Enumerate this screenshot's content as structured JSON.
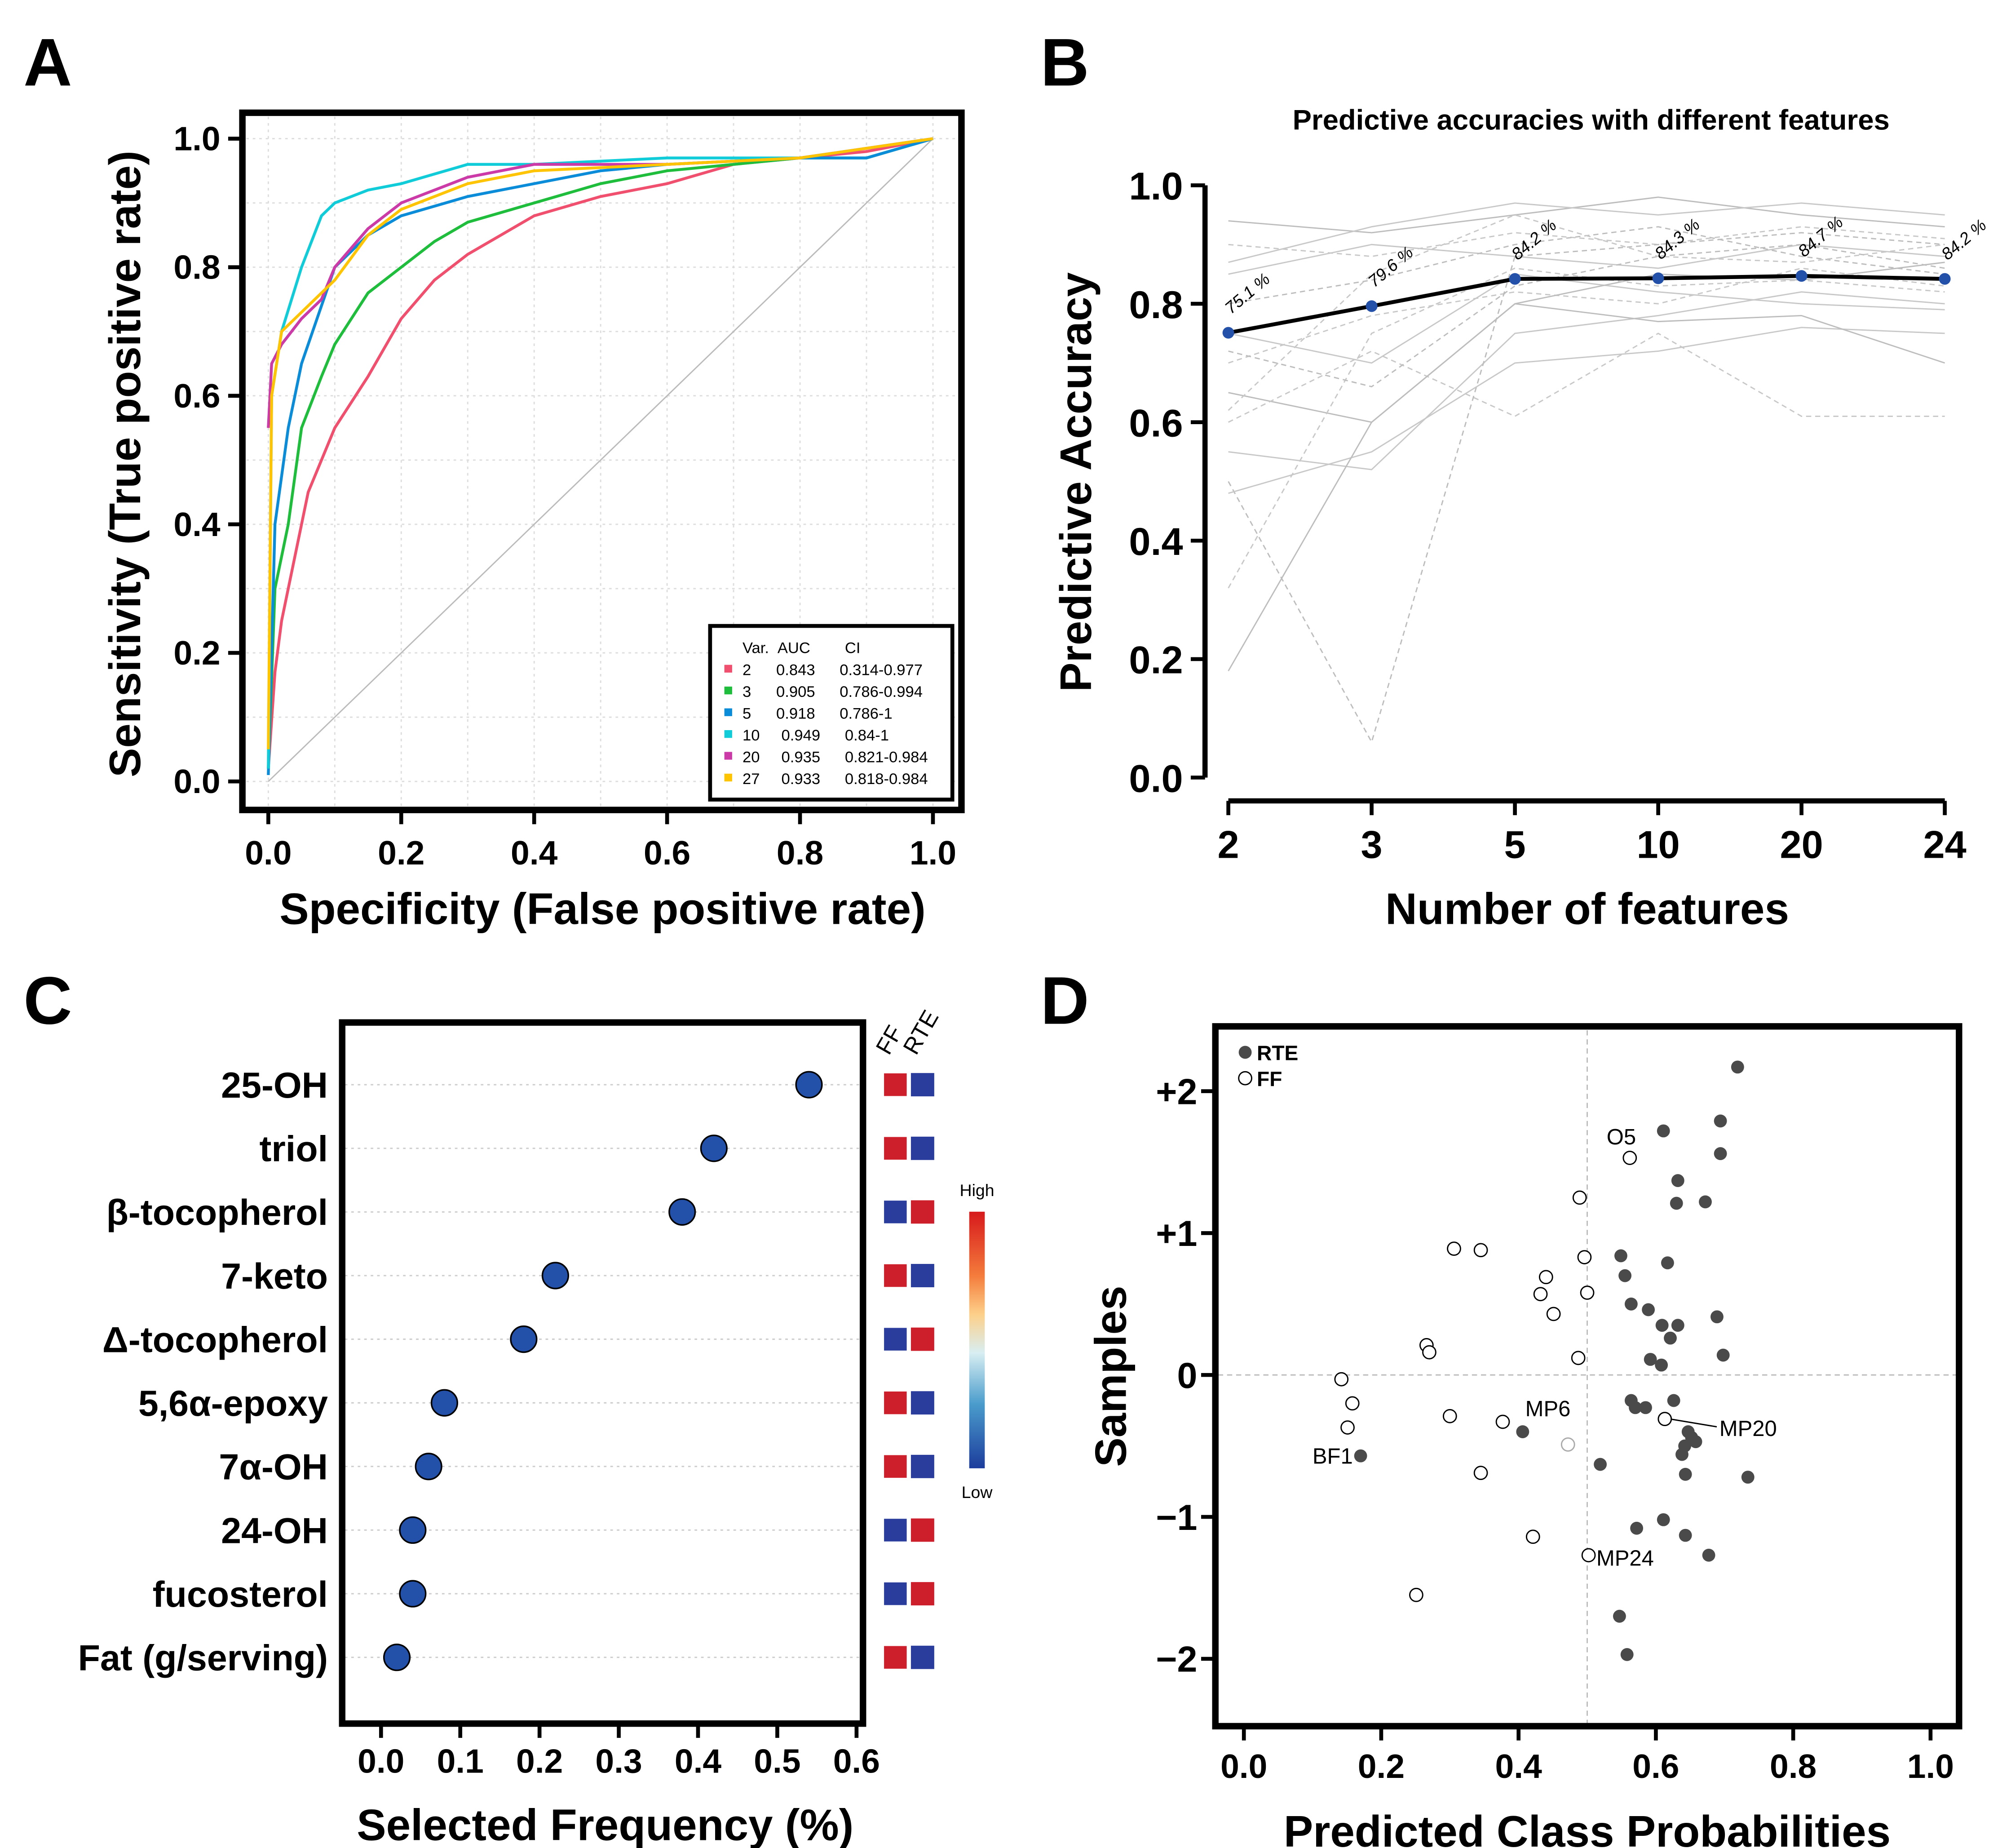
{
  "chart_data": [
    {
      "panel": "A",
      "type": "line",
      "xlabel": "Specificity (False positive rate)",
      "ylabel": "Sensitivity (True positive rate)",
      "xlim": [
        0,
        1
      ],
      "ylim": [
        0,
        1
      ],
      "ticks": [
        "0.0",
        "0.2",
        "0.4",
        "0.6",
        "0.8",
        "1.0"
      ],
      "grid": true,
      "legend": {
        "placement": "bottom-right",
        "header": [
          "Var.",
          "AUC",
          "CI"
        ],
        "entries": [
          {
            "var": "2",
            "auc": "0.843",
            "ci": "0.314-0.977",
            "color": "#f0506e"
          },
          {
            "var": "3",
            "auc": "0.905",
            "ci": "0.786-0.994",
            "color": "#1ebe3c"
          },
          {
            "var": "5",
            "auc": "0.918",
            "ci": "0.786-1",
            "color": "#0a8cd8"
          },
          {
            "var": "10",
            "auc": "0.949",
            "ci": "0.84-1",
            "color": "#10ccd8"
          },
          {
            "var": "20",
            "auc": "0.935",
            "ci": "0.821-0.984",
            "color": "#cc3aa8"
          },
          {
            "var": "27",
            "auc": "0.933",
            "ci": "0.818-0.984",
            "color": "#ffc400"
          }
        ]
      },
      "series": [
        {
          "name": "2",
          "points": [
            [
              0,
              0.02
            ],
            [
              0.01,
              0.17
            ],
            [
              0.02,
              0.25
            ],
            [
              0.04,
              0.35
            ],
            [
              0.06,
              0.45
            ],
            [
              0.1,
              0.55
            ],
            [
              0.15,
              0.63
            ],
            [
              0.2,
              0.72
            ],
            [
              0.25,
              0.78
            ],
            [
              0.3,
              0.82
            ],
            [
              0.35,
              0.85
            ],
            [
              0.4,
              0.88
            ],
            [
              0.5,
              0.91
            ],
            [
              0.6,
              0.93
            ],
            [
              0.7,
              0.96
            ],
            [
              0.8,
              0.97
            ],
            [
              0.9,
              0.98
            ],
            [
              1,
              1
            ]
          ]
        },
        {
          "name": "3",
          "points": [
            [
              0,
              0.02
            ],
            [
              0.01,
              0.3
            ],
            [
              0.03,
              0.4
            ],
            [
              0.05,
              0.55
            ],
            [
              0.08,
              0.63
            ],
            [
              0.1,
              0.68
            ],
            [
              0.15,
              0.76
            ],
            [
              0.2,
              0.8
            ],
            [
              0.25,
              0.84
            ],
            [
              0.3,
              0.87
            ],
            [
              0.4,
              0.9
            ],
            [
              0.5,
              0.93
            ],
            [
              0.6,
              0.95
            ],
            [
              0.7,
              0.96
            ],
            [
              0.8,
              0.97
            ],
            [
              0.9,
              0.97
            ],
            [
              1,
              1
            ]
          ]
        },
        {
          "name": "5",
          "points": [
            [
              0,
              0.01
            ],
            [
              0.01,
              0.4
            ],
            [
              0.03,
              0.55
            ],
            [
              0.05,
              0.65
            ],
            [
              0.08,
              0.74
            ],
            [
              0.1,
              0.8
            ],
            [
              0.15,
              0.85
            ],
            [
              0.2,
              0.88
            ],
            [
              0.3,
              0.91
            ],
            [
              0.4,
              0.93
            ],
            [
              0.5,
              0.95
            ],
            [
              0.6,
              0.96
            ],
            [
              0.8,
              0.97
            ],
            [
              0.9,
              0.97
            ],
            [
              1,
              1
            ]
          ]
        },
        {
          "name": "10",
          "points": [
            [
              0,
              0.02
            ],
            [
              0.005,
              0.6
            ],
            [
              0.02,
              0.7
            ],
            [
              0.05,
              0.8
            ],
            [
              0.08,
              0.88
            ],
            [
              0.1,
              0.9
            ],
            [
              0.15,
              0.92
            ],
            [
              0.2,
              0.93
            ],
            [
              0.3,
              0.96
            ],
            [
              0.4,
              0.96
            ],
            [
              0.6,
              0.97
            ],
            [
              0.8,
              0.97
            ],
            [
              1,
              1
            ]
          ]
        },
        {
          "name": "20",
          "points": [
            [
              0,
              0.55
            ],
            [
              0.005,
              0.65
            ],
            [
              0.02,
              0.68
            ],
            [
              0.05,
              0.72
            ],
            [
              0.08,
              0.75
            ],
            [
              0.1,
              0.8
            ],
            [
              0.15,
              0.86
            ],
            [
              0.2,
              0.9
            ],
            [
              0.3,
              0.94
            ],
            [
              0.4,
              0.96
            ],
            [
              0.6,
              0.96
            ],
            [
              0.8,
              0.97
            ],
            [
              1,
              1
            ]
          ]
        },
        {
          "name": "27",
          "points": [
            [
              0,
              0.05
            ],
            [
              0.005,
              0.6
            ],
            [
              0.02,
              0.7
            ],
            [
              0.05,
              0.73
            ],
            [
              0.1,
              0.78
            ],
            [
              0.15,
              0.85
            ],
            [
              0.2,
              0.89
            ],
            [
              0.3,
              0.93
            ],
            [
              0.4,
              0.95
            ],
            [
              0.6,
              0.96
            ],
            [
              0.8,
              0.97
            ],
            [
              1,
              1
            ]
          ]
        }
      ]
    },
    {
      "panel": "B",
      "type": "line",
      "title": "Predictive accuracies with different features",
      "xlabel": "Number of features",
      "ylabel": "Predictive Accuracy",
      "categories": [
        "2",
        "3",
        "5",
        "10",
        "20",
        "24"
      ],
      "ylim": [
        0,
        1
      ],
      "yticks": [
        "0.0",
        "0.2",
        "0.4",
        "0.6",
        "0.8",
        "1.0"
      ],
      "main_series": {
        "values": [
          0.751,
          0.796,
          0.842,
          0.843,
          0.847,
          0.842
        ],
        "labels": [
          "75.1 %",
          "79.6 %",
          "84.2 %",
          "84.3 %",
          "84.7 %",
          "84.2 %"
        ],
        "color": "#000000",
        "point_color": "#2350a8"
      },
      "background_series": [
        [
          0.94,
          0.92,
          0.95,
          0.98,
          0.95,
          0.93
        ],
        [
          0.9,
          0.88,
          0.92,
          0.9,
          0.93,
          0.91
        ],
        [
          0.85,
          0.9,
          0.88,
          0.86,
          0.9,
          0.88
        ],
        [
          0.8,
          0.84,
          0.9,
          0.93,
          0.88,
          0.85
        ],
        [
          0.75,
          0.7,
          0.85,
          0.82,
          0.8,
          0.79
        ],
        [
          0.7,
          0.78,
          0.82,
          0.8,
          0.86,
          0.83
        ],
        [
          0.65,
          0.6,
          0.8,
          0.85,
          0.84,
          0.87
        ],
        [
          0.6,
          0.72,
          0.61,
          0.75,
          0.61,
          0.61
        ],
        [
          0.55,
          0.52,
          0.75,
          0.78,
          0.82,
          0.8
        ],
        [
          0.5,
          0.06,
          0.88,
          0.9,
          0.92,
          0.9
        ],
        [
          0.48,
          0.55,
          0.7,
          0.72,
          0.76,
          0.75
        ],
        [
          0.32,
          0.75,
          0.86,
          0.83,
          0.84,
          0.82
        ],
        [
          0.18,
          0.6,
          0.8,
          0.77,
          0.78,
          0.7
        ],
        [
          0.62,
          0.85,
          0.95,
          0.88,
          0.87,
          0.9
        ],
        [
          0.87,
          0.93,
          0.97,
          0.95,
          0.97,
          0.95
        ],
        [
          0.72,
          0.66,
          0.83,
          0.88,
          0.9,
          0.86
        ]
      ]
    },
    {
      "panel": "C",
      "type": "scatter",
      "xlabel": "Selected Frequency (%)",
      "xlim": [
        0,
        0.6
      ],
      "xticks": [
        "0.0",
        "0.1",
        "0.2",
        "0.3",
        "0.4",
        "0.5",
        "0.6"
      ],
      "heat_headers": [
        "FF",
        "RTE"
      ],
      "colorbar": {
        "high": "High",
        "low": "Low"
      },
      "colors": {
        "high": "#cc1f2b",
        "low": "#2a3c9c",
        "point": "#2350a8"
      },
      "rows": [
        {
          "label": "25-OH",
          "value": 0.54,
          "ff": "high",
          "rte": "low"
        },
        {
          "label": "triol",
          "value": 0.42,
          "ff": "high",
          "rte": "low"
        },
        {
          "label": "β-tocopherol",
          "value": 0.38,
          "ff": "low",
          "rte": "high"
        },
        {
          "label": "7-keto",
          "value": 0.22,
          "ff": "high",
          "rte": "low"
        },
        {
          "label": "Δ-tocopherol",
          "value": 0.18,
          "ff": "low",
          "rte": "high"
        },
        {
          "label": "5,6α-epoxy",
          "value": 0.08,
          "ff": "high",
          "rte": "low"
        },
        {
          "label": "7α-OH",
          "value": 0.06,
          "ff": "high",
          "rte": "low"
        },
        {
          "label": "24-OH",
          "value": 0.04,
          "ff": "low",
          "rte": "high"
        },
        {
          "label": "fucosterol",
          "value": 0.04,
          "ff": "low",
          "rte": "high"
        },
        {
          "label": "Fat (g/serving)",
          "value": 0.02,
          "ff": "high",
          "rte": "low"
        }
      ]
    },
    {
      "panel": "D",
      "type": "scatter",
      "xlabel": "Predicted Class Probabilities",
      "ylabel": "Samples",
      "xlim": [
        0,
        1
      ],
      "ylim": [
        -2.5,
        2.5
      ],
      "xticks": [
        "0.0",
        "0.2",
        "0.4",
        "0.6",
        "0.8",
        "1.0"
      ],
      "yticks": [
        {
          "v": 2,
          "t": "+2"
        },
        {
          "v": 1,
          "t": "+1"
        },
        {
          "v": 0,
          "t": "0"
        },
        {
          "v": -1,
          "t": "−1"
        },
        {
          "v": -2,
          "t": "−2"
        }
      ],
      "legend": {
        "placement": "top-left",
        "entries": [
          "RTE",
          "FF"
        ]
      },
      "rte": [
        [
          0.719,
          2.17
        ],
        [
          0.611,
          1.72
        ],
        [
          0.694,
          1.79
        ],
        [
          0.694,
          1.56
        ],
        [
          0.632,
          1.37
        ],
        [
          0.63,
          1.21
        ],
        [
          0.672,
          1.22
        ],
        [
          0.549,
          0.84
        ],
        [
          0.617,
          0.79
        ],
        [
          0.555,
          0.7
        ],
        [
          0.564,
          0.5
        ],
        [
          0.589,
          0.46
        ],
        [
          0.609,
          0.35
        ],
        [
          0.632,
          0.35
        ],
        [
          0.689,
          0.41
        ],
        [
          0.621,
          0.26
        ],
        [
          0.592,
          0.11
        ],
        [
          0.608,
          0.07
        ],
        [
          0.698,
          0.14
        ],
        [
          0.564,
          -0.18
        ],
        [
          0.57,
          -0.23
        ],
        [
          0.626,
          -0.18
        ],
        [
          0.585,
          -0.23
        ],
        [
          0.647,
          -0.4
        ],
        [
          0.642,
          -0.5
        ],
        [
          0.658,
          -0.47
        ],
        [
          0.652,
          -0.44
        ],
        [
          0.638,
          -0.56
        ],
        [
          0.643,
          -0.7
        ],
        [
          0.734,
          -0.72
        ],
        [
          0.519,
          -0.63
        ],
        [
          0.406,
          -0.4
        ],
        [
          0.17,
          -0.57
        ],
        [
          0.611,
          -1.02
        ],
        [
          0.572,
          -1.08
        ],
        [
          0.643,
          -1.13
        ],
        [
          0.677,
          -1.27
        ],
        [
          0.547,
          -1.7
        ],
        [
          0.558,
          -1.97
        ]
      ],
      "ff": [
        [
          0.562,
          1.53
        ],
        [
          0.489,
          1.25
        ],
        [
          0.306,
          0.89
        ],
        [
          0.345,
          0.88
        ],
        [
          0.496,
          0.83
        ],
        [
          0.44,
          0.69
        ],
        [
          0.5,
          0.58
        ],
        [
          0.432,
          0.57
        ],
        [
          0.451,
          0.43
        ],
        [
          0.266,
          0.21
        ],
        [
          0.27,
          0.16
        ],
        [
          0.487,
          0.12
        ],
        [
          0.142,
          -0.03
        ],
        [
          0.158,
          -0.2
        ],
        [
          0.151,
          -0.37
        ],
        [
          0.3,
          -0.29
        ],
        [
          0.377,
          -0.33
        ],
        [
          0.613,
          -0.31
        ],
        [
          0.345,
          -0.69
        ],
        [
          0.421,
          -1.14
        ],
        [
          0.502,
          -1.27
        ],
        [
          0.251,
          -1.55
        ]
      ],
      "ff_grey": [
        [
          0.472,
          -0.49
        ]
      ],
      "annotations": [
        {
          "text": "O5",
          "x": 0.562,
          "y": 1.53
        },
        {
          "text": "MP6",
          "x": 0.406,
          "y": -0.4
        },
        {
          "text": "BF1",
          "x": 0.17,
          "y": -0.57
        },
        {
          "text": "MP20",
          "x": 0.613,
          "y": -0.31
        },
        {
          "text": "MP24",
          "x": 0.502,
          "y": -1.27
        }
      ]
    }
  ],
  "panels": {
    "a": "A",
    "b": "B",
    "c": "C",
    "d": "D"
  }
}
